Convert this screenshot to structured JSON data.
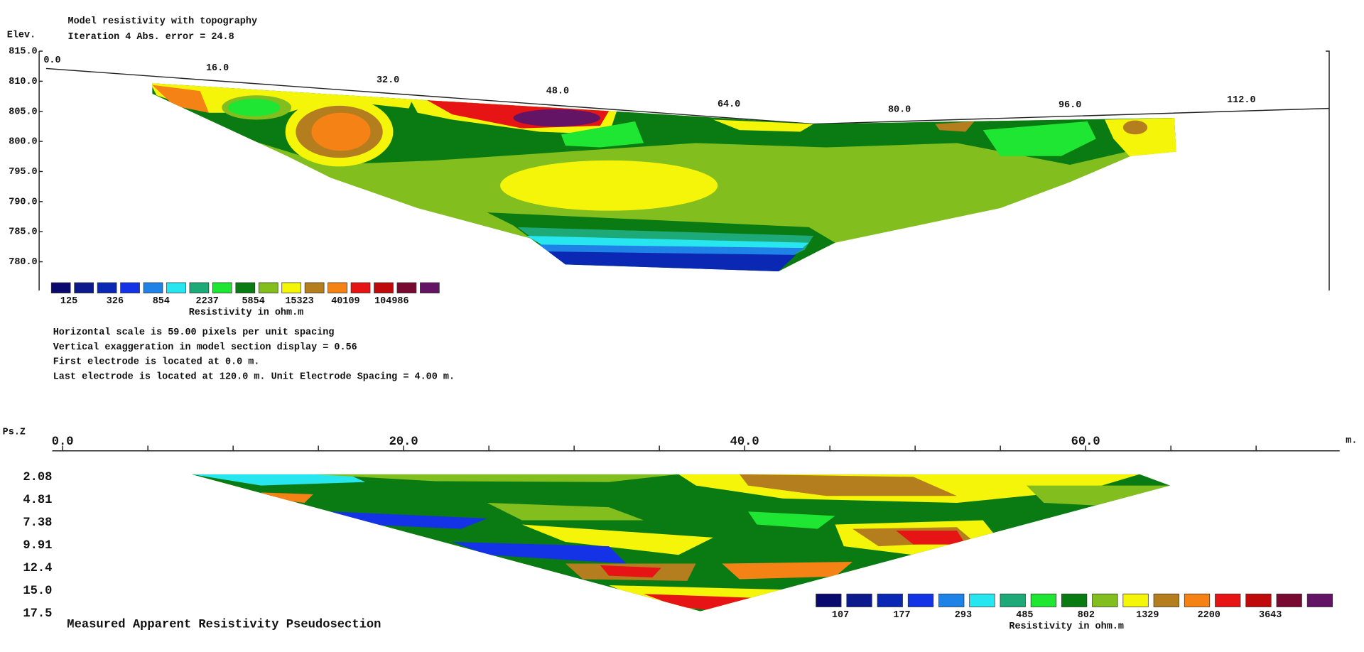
{
  "top": {
    "title": "Model resistivity with topography",
    "subtitle": "Iteration 4 Abs. error = 24.8",
    "y_label": "Elev.",
    "yticks": [
      "815.0",
      "810.0",
      "805.0",
      "800.0",
      "795.0",
      "790.0",
      "785.0",
      "780.0"
    ],
    "xticks": [
      "0.0",
      "16.0",
      "32.0",
      "48.0",
      "64.0",
      "80.0",
      "96.0",
      "112.0"
    ],
    "legend": {
      "labels": [
        "125",
        "326",
        "854",
        "2237",
        "5854",
        "15323",
        "40109",
        "104986"
      ],
      "title": "Resistivity in ohm.m"
    },
    "notes": [
      "Horizontal scale is 59.00 pixels per unit spacing",
      "Vertical exaggeration in model section display = 0.56",
      "First electrode is located at 0.0  m.",
      "Last electrode is located at 120.0 m.    Unit Electrode Spacing = 4.00 m."
    ]
  },
  "bottom": {
    "title": "Measured Apparent Resistivity Pseudosection",
    "y_label": "Ps.Z",
    "x_unit": "m.",
    "xticks": [
      "0.0",
      "20.0",
      "40.0",
      "60.0"
    ],
    "yticks": [
      "2.08",
      "4.81",
      "7.38",
      "9.91",
      "12.4",
      "15.0",
      "17.5"
    ],
    "legend": {
      "labels": [
        "107",
        "177",
        "293",
        "485",
        "802",
        "1329",
        "2200",
        "3643"
      ],
      "title": "Resistivity in ohm.m"
    }
  },
  "colors": [
    "#0a0a6e",
    "#0c1a8c",
    "#0a28b4",
    "#1432e6",
    "#1e82e6",
    "#28e6f0",
    "#1eaa78",
    "#1ee632",
    "#0a7a12",
    "#82be1e",
    "#f5f50a",
    "#b47d1e",
    "#f58214",
    "#e61414",
    "#be0a0a",
    "#780a32",
    "#641464"
  ]
}
